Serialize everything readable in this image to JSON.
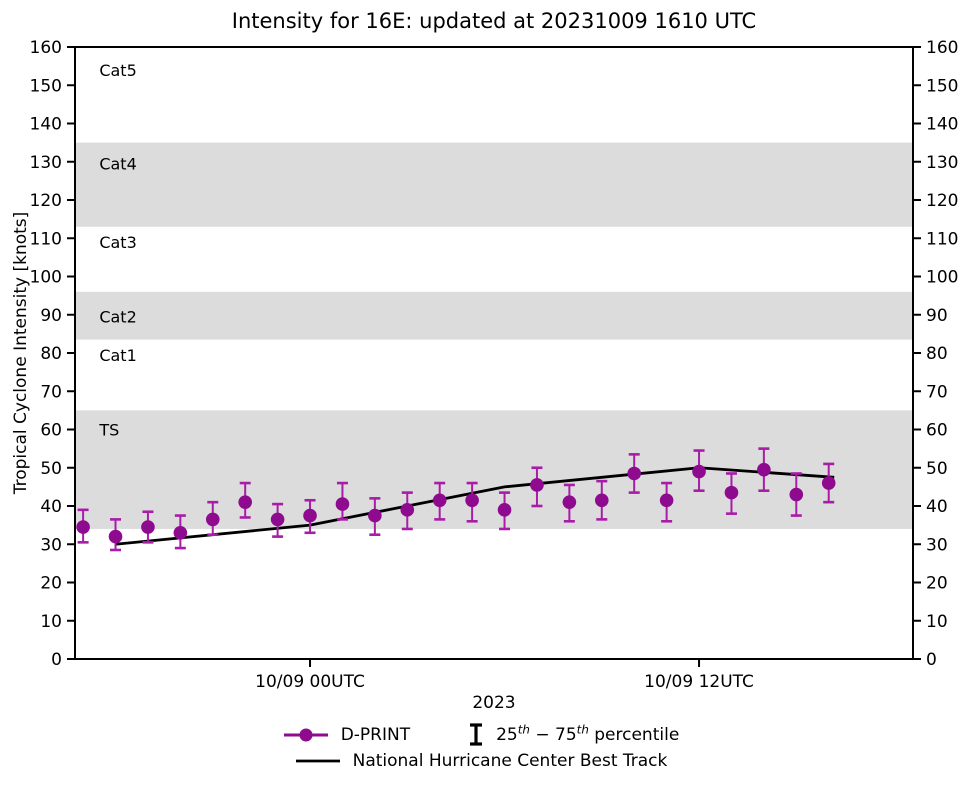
{
  "legend": {
    "dprint_label": "D-PRINT",
    "percentile": {
      "n1": "25",
      "sup1": "th",
      "sep": " − ",
      "n2": "75",
      "sup2": "th",
      "rest": " percentile"
    },
    "best_track_label": "National Hurricane Center Best Track"
  },
  "colors": {
    "dprint_marker": "#8E0A8E",
    "dprint_errorbar": "#A81CA8",
    "best_track": "#000000",
    "category_band": "#DCDCDC",
    "axis": "#000000"
  },
  "chart_data": {
    "type": "line",
    "title": "Intensity for 16E: updated at 20231009 1610 UTC",
    "xlabel": "2023",
    "ylabel": "Tropical Cyclone Intensity [knots]",
    "ylim": [
      0,
      160
    ],
    "ytick_step": 10,
    "grid": false,
    "legend_position": "below",
    "x_unit": "hours relative to 10/09 00UTC",
    "x_range_hours": [
      -7.25,
      18.6
    ],
    "xticks": [
      {
        "h": 0,
        "label": "10/09 00UTC"
      },
      {
        "h": 12,
        "label": "10/09 12UTC"
      }
    ],
    "bands": [
      {
        "label": "TS",
        "from": 34,
        "to": 65
      },
      {
        "label": "Cat2",
        "from": 83.5,
        "to": 96
      },
      {
        "label": "Cat4",
        "from": 113,
        "to": 135
      }
    ],
    "label_x_hours": -6.5,
    "category_labels": [
      {
        "label": "Cat5",
        "y": 154
      },
      {
        "label": "Cat4",
        "y": 129.5
      },
      {
        "label": "Cat3",
        "y": 109
      },
      {
        "label": "Cat2",
        "y": 89.5
      },
      {
        "label": "Cat1",
        "y": 79.5
      },
      {
        "label": "TS",
        "y": 60
      }
    ],
    "series": [
      {
        "name": "D-PRINT",
        "type": "scatter_errorbar",
        "errorbar_meaning": "25th − 75th percentile",
        "points": [
          {
            "h": -7,
            "v": 34.5,
            "p25": 30.5,
            "p75": 39
          },
          {
            "h": -6,
            "v": 32,
            "p25": 28.5,
            "p75": 36.5
          },
          {
            "h": -5,
            "v": 34.5,
            "p25": 30.5,
            "p75": 38.5
          },
          {
            "h": -4,
            "v": 33,
            "p25": 29,
            "p75": 37.5
          },
          {
            "h": -3,
            "v": 36.5,
            "p25": 32.5,
            "p75": 41
          },
          {
            "h": -2,
            "v": 41,
            "p25": 37,
            "p75": 46
          },
          {
            "h": -1,
            "v": 36.5,
            "p25": 32,
            "p75": 40.5
          },
          {
            "h": 0,
            "v": 37.5,
            "p25": 33,
            "p75": 41.5
          },
          {
            "h": 1,
            "v": 40.5,
            "p25": 36.5,
            "p75": 46
          },
          {
            "h": 2,
            "v": 37.5,
            "p25": 32.5,
            "p75": 42
          },
          {
            "h": 3,
            "v": 39,
            "p25": 34,
            "p75": 43.5
          },
          {
            "h": 4,
            "v": 41.5,
            "p25": 36.5,
            "p75": 46
          },
          {
            "h": 5,
            "v": 41.5,
            "p25": 36,
            "p75": 46
          },
          {
            "h": 6,
            "v": 39,
            "p25": 34,
            "p75": 43.5
          },
          {
            "h": 7,
            "v": 45.5,
            "p25": 40,
            "p75": 50
          },
          {
            "h": 8,
            "v": 41,
            "p25": 36,
            "p75": 45.5
          },
          {
            "h": 9,
            "v": 41.5,
            "p25": 36.5,
            "p75": 46.5
          },
          {
            "h": 10,
            "v": 48.5,
            "p25": 43.5,
            "p75": 53.5
          },
          {
            "h": 11,
            "v": 41.5,
            "p25": 36,
            "p75": 46
          },
          {
            "h": 12,
            "v": 49,
            "p25": 44,
            "p75": 54.5
          },
          {
            "h": 13,
            "v": 43.5,
            "p25": 38,
            "p75": 48.5
          },
          {
            "h": 14,
            "v": 49.5,
            "p25": 44,
            "p75": 55
          },
          {
            "h": 15,
            "v": 43,
            "p25": 37.5,
            "p75": 48.5
          },
          {
            "h": 16,
            "v": 46,
            "p25": 41,
            "p75": 51
          }
        ]
      },
      {
        "name": "National Hurricane Center Best Track",
        "type": "line",
        "points": [
          {
            "h": -6,
            "v": 30
          },
          {
            "h": 0,
            "v": 35
          },
          {
            "h": 6,
            "v": 45
          },
          {
            "h": 12,
            "v": 50
          },
          {
            "h": 16.17,
            "v": 47.5
          }
        ]
      }
    ]
  }
}
